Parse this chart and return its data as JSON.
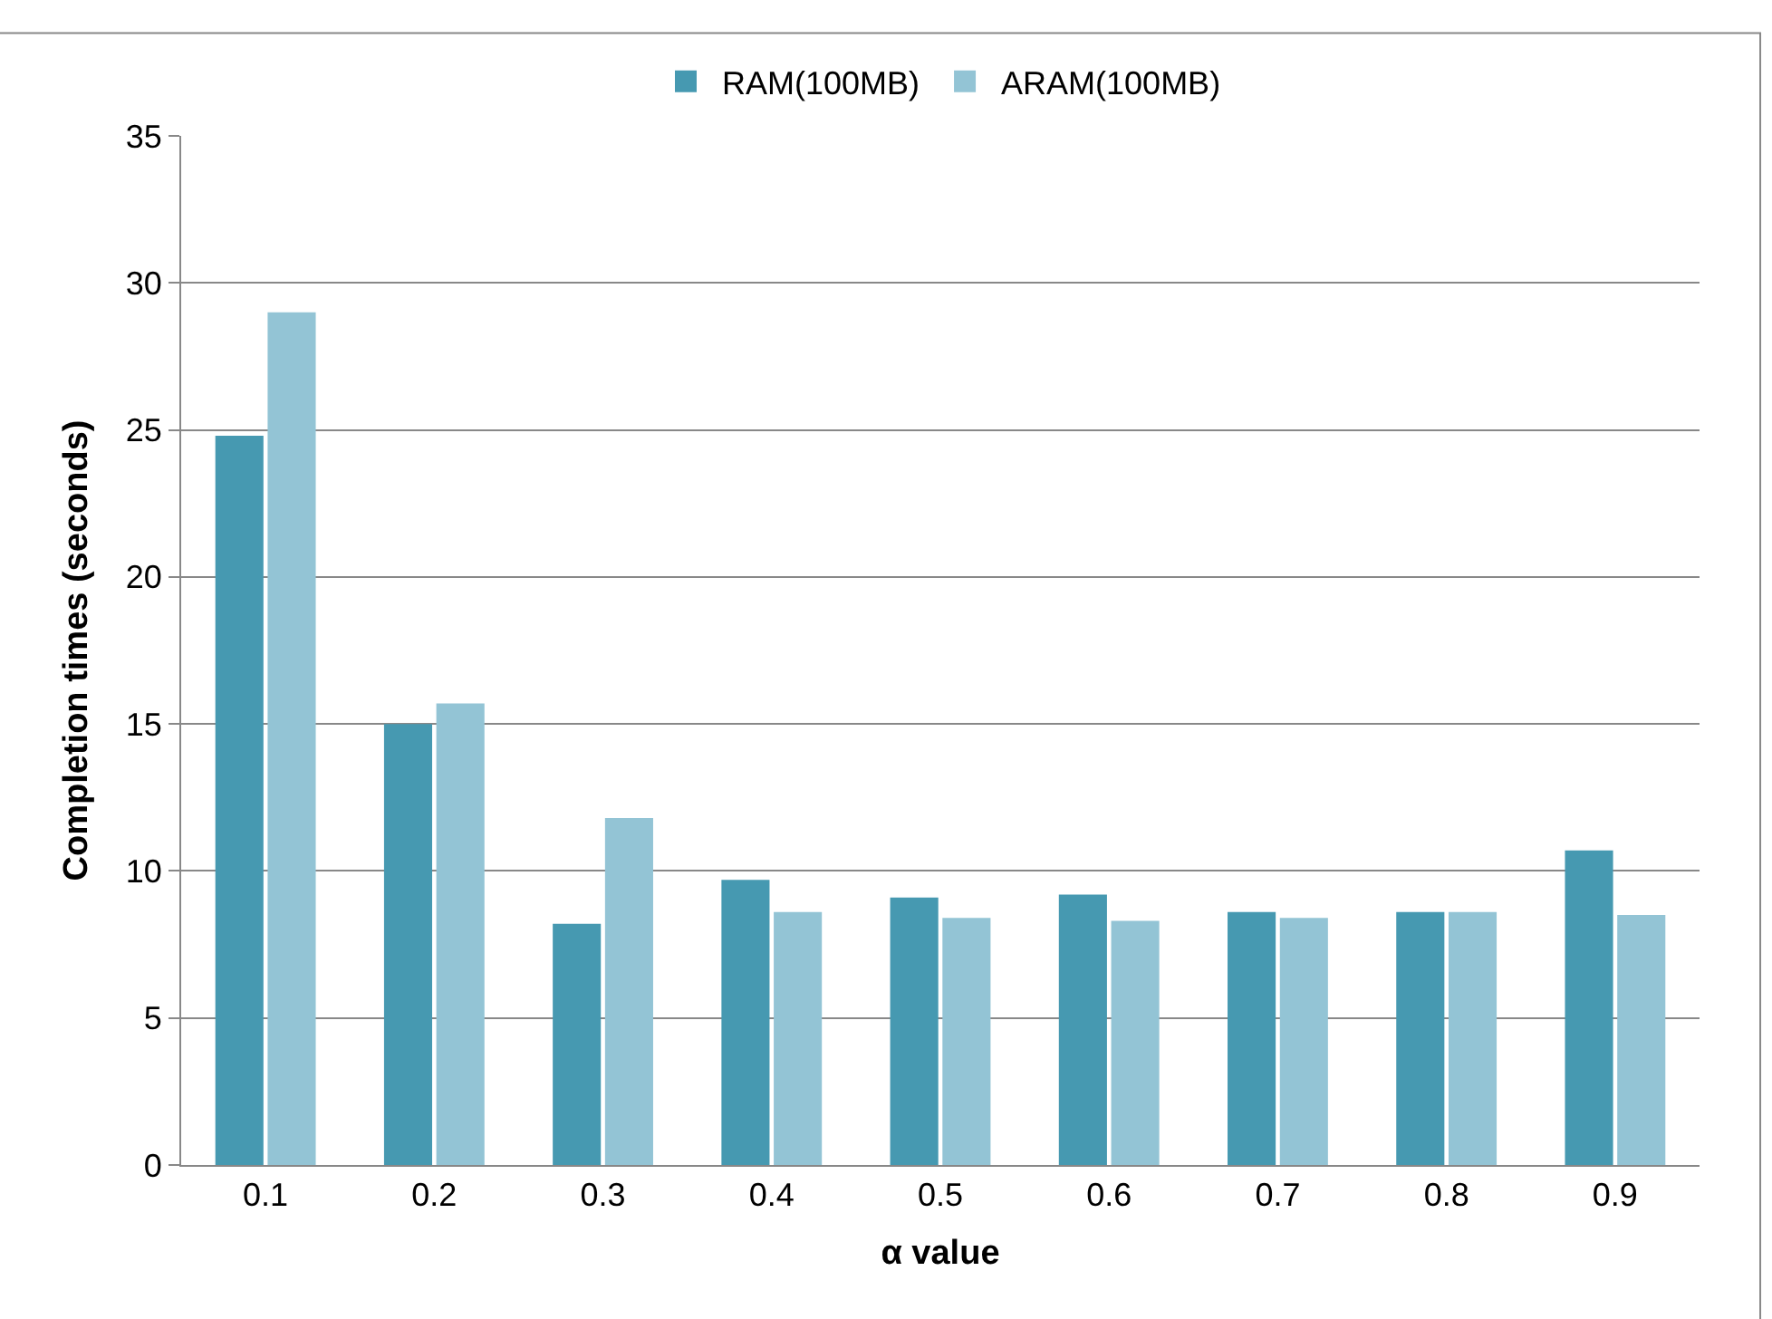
{
  "chart_data": {
    "type": "bar",
    "xlabel": "α value",
    "ylabel": "Completion times (seconds)",
    "categories": [
      "0.1",
      "0.2",
      "0.3",
      "0.4",
      "0.5",
      "0.6",
      "0.7",
      "0.8",
      "0.9"
    ],
    "series": [
      {
        "name": "RAM(100MB)",
        "color": "#4699b1",
        "values": [
          24.8,
          15.0,
          8.2,
          9.7,
          9.1,
          9.2,
          8.6,
          8.6,
          10.7
        ]
      },
      {
        "name": "ARAM(100MB)",
        "color": "#93c4d5",
        "values": [
          29.0,
          15.7,
          11.8,
          8.6,
          8.4,
          8.3,
          8.4,
          8.6,
          8.5
        ]
      }
    ],
    "ylim": [
      0,
      35
    ],
    "yticks": [
      0,
      5,
      10,
      15,
      20,
      25,
      30,
      35
    ],
    "grid": "y",
    "legend": "top"
  }
}
